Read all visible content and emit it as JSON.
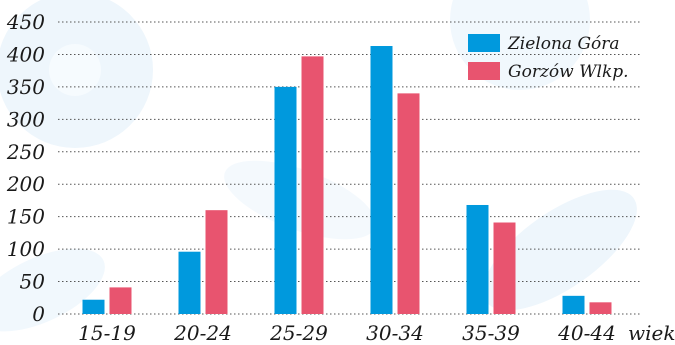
{
  "chart_data": {
    "type": "bar",
    "categories": [
      "15-19",
      "20-24",
      "25-29",
      "30-34",
      "35-39",
      "40-44"
    ],
    "series": [
      {
        "name": "Zielona Góra",
        "color": "#0099dd",
        "values": [
          22,
          96,
          350,
          413,
          168,
          28
        ]
      },
      {
        "name": "Gorzów Wlkp.",
        "color": "#e8546f",
        "values": [
          41,
          160,
          397,
          340,
          141,
          18
        ]
      }
    ],
    "xlabel": "wiek",
    "ylabel": "",
    "ylim": [
      0,
      450
    ],
    "yticks": [
      0,
      50,
      100,
      150,
      200,
      250,
      300,
      350,
      400,
      450
    ],
    "grid": true,
    "grid_style": "dotted horizontal",
    "legend_position": "top-right",
    "background_decoration": "pale blue floral pattern"
  }
}
